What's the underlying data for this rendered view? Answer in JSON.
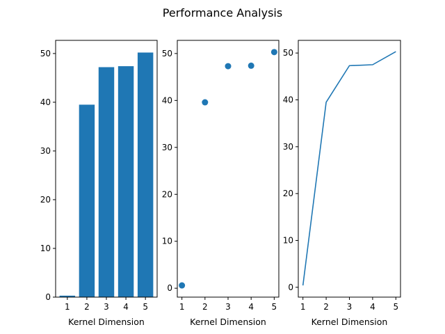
{
  "title": "Performance Analysis",
  "colors": {
    "series": "#1f77b4",
    "axis": "#000000",
    "background": "#ffffff"
  },
  "chart_data": [
    {
      "type": "bar",
      "x": [
        1,
        2,
        3,
        4,
        5
      ],
      "values": [
        0.3,
        39.5,
        47.2,
        47.4,
        50.2
      ],
      "xticks": [
        "1",
        "2",
        "3",
        "4",
        "5"
      ],
      "yticks": [
        "0",
        "10",
        "20",
        "30",
        "40",
        "50"
      ],
      "xlabel": "Kernel Dimension",
      "ylabel": "",
      "xlim": [
        0.4,
        5.6
      ],
      "ylim": [
        0,
        52.7
      ],
      "grid": false
    },
    {
      "type": "scatter",
      "x": [
        1,
        2,
        3,
        4,
        5
      ],
      "values": [
        0.6,
        39.6,
        47.3,
        47.4,
        50.3
      ],
      "xticks": [
        "1",
        "2",
        "3",
        "4",
        "5"
      ],
      "yticks": [
        "0",
        "10",
        "20",
        "30",
        "40",
        "50"
      ],
      "xlabel": "Kernel Dimension",
      "ylabel": "",
      "xlim": [
        0.8,
        5.2
      ],
      "ylo": -1.9,
      "ylim": [
        -1.9,
        52.8
      ],
      "grid": false
    },
    {
      "type": "line",
      "x": [
        1,
        2,
        3,
        4,
        5
      ],
      "values": [
        0.4,
        39.5,
        47.3,
        47.5,
        50.3
      ],
      "xticks": [
        "1",
        "2",
        "3",
        "4",
        "5"
      ],
      "yticks": [
        "0",
        "10",
        "20",
        "30",
        "40",
        "50"
      ],
      "xlabel": "Kernel Dimension",
      "ylabel": "",
      "xlim": [
        0.8,
        5.2
      ],
      "ylim": [
        -2.1,
        52.7
      ],
      "grid": false
    }
  ]
}
